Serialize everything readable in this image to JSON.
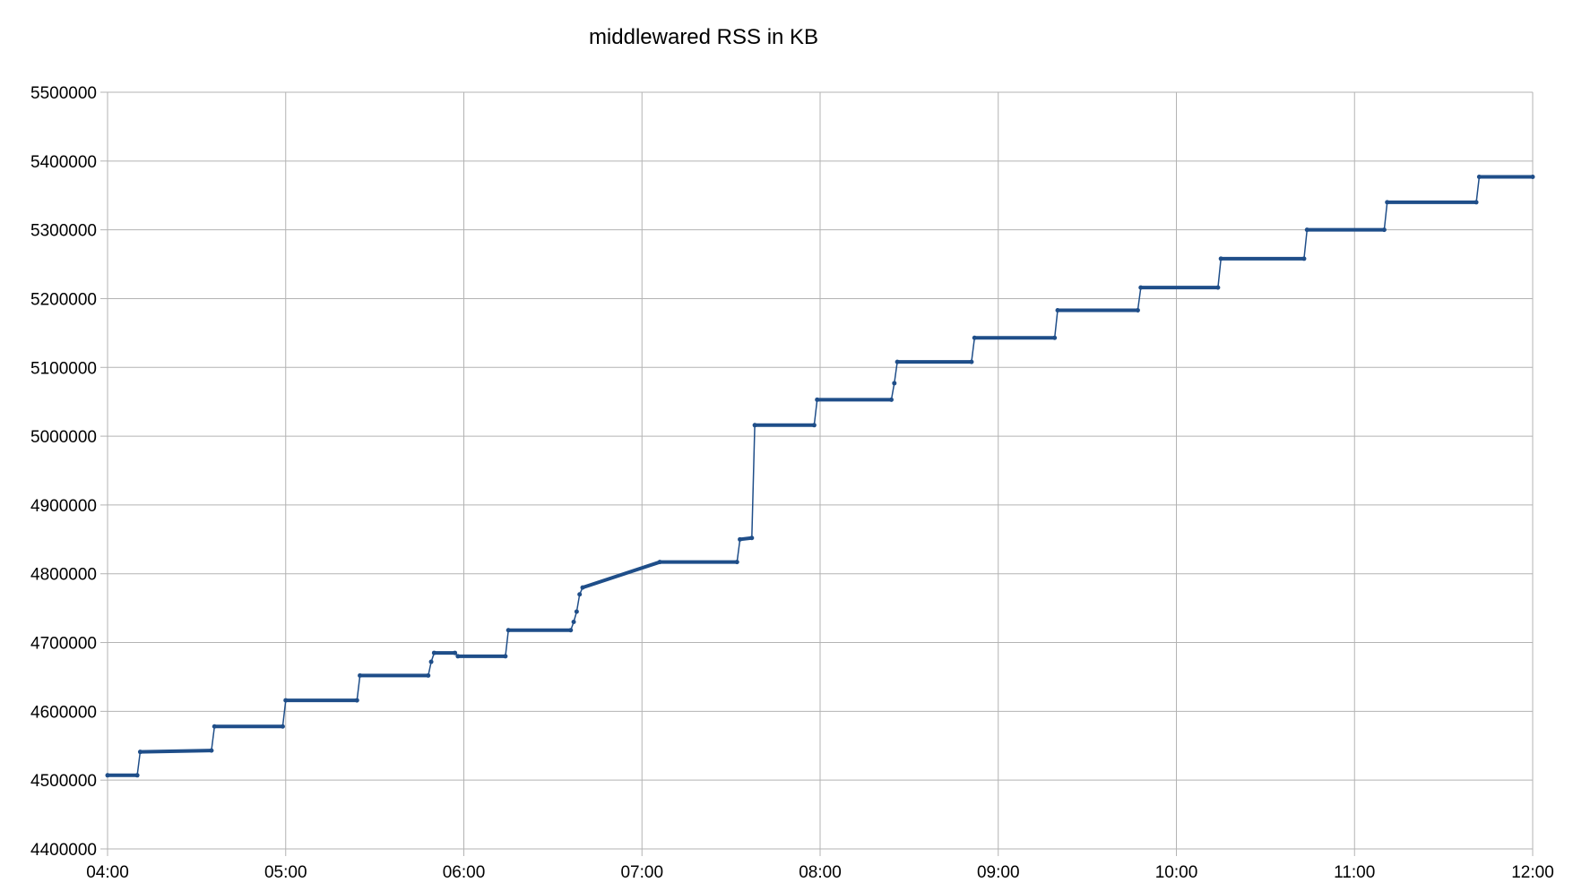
{
  "chart_data": {
    "type": "line",
    "title": "middlewared RSS in KB",
    "xlabel": "",
    "ylabel": "",
    "x_tick_labels": [
      "04:00",
      "05:00",
      "06:00",
      "07:00",
      "08:00",
      "09:00",
      "10:00",
      "11:00",
      "12:00"
    ],
    "y_tick_labels": [
      "4400000",
      "4500000",
      "4600000",
      "4700000",
      "4800000",
      "4900000",
      "5000000",
      "5100000",
      "5200000",
      "5300000",
      "5400000",
      "5500000"
    ],
    "xlim": [
      "04:00",
      "12:00"
    ],
    "ylim": [
      4400000,
      5500000
    ],
    "grid": true,
    "legend": "none",
    "series": [
      {
        "color": "#1f4e89",
        "x": [
          "04:00",
          "04:10",
          "04:11",
          "04:35",
          "04:36",
          "04:59",
          "05:00",
          "05:24",
          "05:25",
          "05:48",
          "05:49",
          "05:50",
          "05:57",
          "05:58",
          "06:14",
          "06:15",
          "06:36",
          "06:37",
          "06:38",
          "06:39",
          "06:40",
          "07:06",
          "07:32",
          "07:33",
          "07:37",
          "07:38",
          "07:58",
          "07:59",
          "08:24",
          "08:25",
          "08:26",
          "08:51",
          "08:52",
          "09:19",
          "09:20",
          "09:47",
          "09:48",
          "10:14",
          "10:15",
          "10:43",
          "10:44",
          "11:10",
          "11:11",
          "11:41",
          "11:42",
          "12:00"
        ],
        "y": [
          4507000,
          4507000,
          4541000,
          4543000,
          4578000,
          4578000,
          4616000,
          4616000,
          4652000,
          4652000,
          4672000,
          4685000,
          4685000,
          4680000,
          4680000,
          4718000,
          4718000,
          4730000,
          4745000,
          4770000,
          4780000,
          4817000,
          4817000,
          4850000,
          4852000,
          5016000,
          5016000,
          5053000,
          5053000,
          5077000,
          5108000,
          5108000,
          5143000,
          5143000,
          5183000,
          5183000,
          5216000,
          5216000,
          5258000,
          5258000,
          5300000,
          5300000,
          5340000,
          5340000,
          5377000,
          5377000
        ]
      }
    ]
  }
}
